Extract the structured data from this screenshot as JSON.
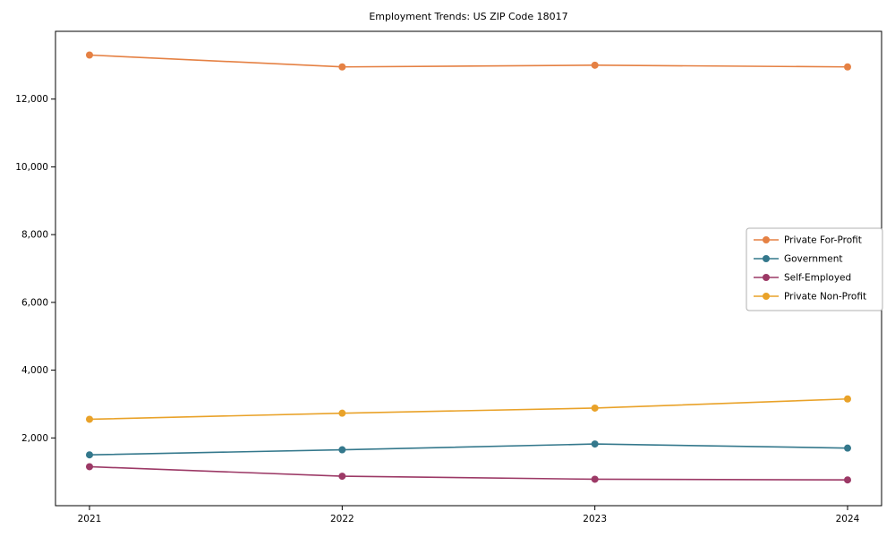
{
  "chart_data": {
    "type": "line",
    "title": "Employment Trends: US ZIP Code 18017",
    "categories": [
      "2021",
      "2022",
      "2023",
      "2024"
    ],
    "series": [
      {
        "name": "Private For-Profit",
        "color": "#e58144",
        "values": [
          13300,
          12950,
          13000,
          12950
        ]
      },
      {
        "name": "Government",
        "color": "#34788c",
        "values": [
          1500,
          1650,
          1820,
          1700
        ]
      },
      {
        "name": "Self-Employed",
        "color": "#9c3966",
        "values": [
          1150,
          870,
          780,
          760
        ]
      },
      {
        "name": "Private Non-Profit",
        "color": "#e9a229",
        "values": [
          2550,
          2730,
          2880,
          3150
        ]
      }
    ],
    "xlabel": "",
    "ylabel": "",
    "ylim": [
      0,
      14000
    ],
    "yticks": [
      2000,
      4000,
      6000,
      8000,
      10000,
      12000
    ],
    "ytick_labels": [
      "2,000",
      "4,000",
      "6,000",
      "8,000",
      "10,000",
      "12,000"
    ],
    "grid": false,
    "legend_position": "center-right",
    "marker": "circle"
  }
}
